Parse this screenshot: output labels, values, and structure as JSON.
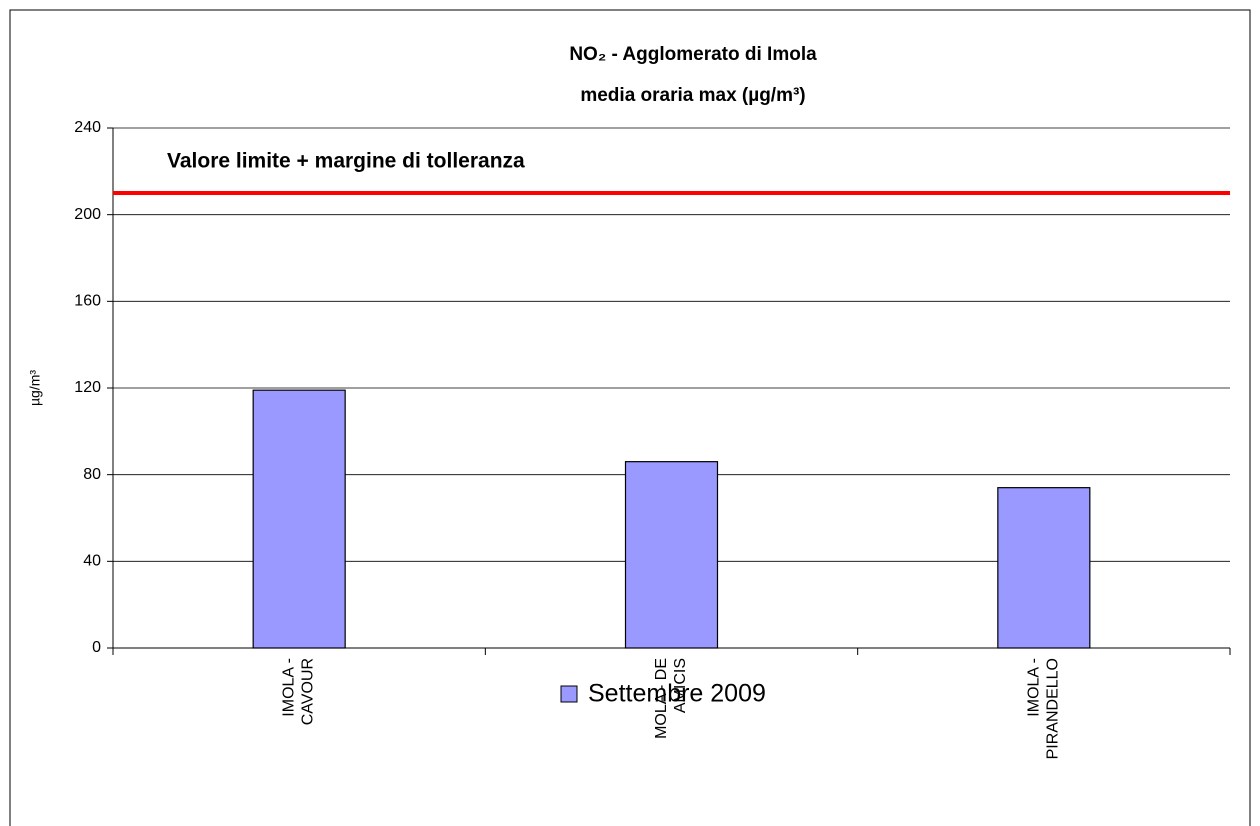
{
  "chart_data": {
    "type": "bar",
    "title": [
      "NO₂ - Agglomerato di Imola",
      "media oraria max  (µg/m³)"
    ],
    "ylabel": "µg/m³",
    "categories": [
      "IMOLA - CAVOUR",
      "MOLA - DE AMICIS",
      "IMOLA - PIRANDELLO"
    ],
    "series": [
      {
        "name": "Settembre 2009",
        "color": "#9999ff",
        "values": [
          119,
          86,
          74
        ]
      }
    ],
    "ylim": [
      0,
      240
    ],
    "yticks": [
      0,
      40,
      80,
      120,
      160,
      200,
      240
    ],
    "grid": true,
    "reference_line": {
      "value": 210,
      "label": "Valore limite + margine di tolleranza",
      "color": "#ff0000"
    },
    "legend": "bottom"
  }
}
